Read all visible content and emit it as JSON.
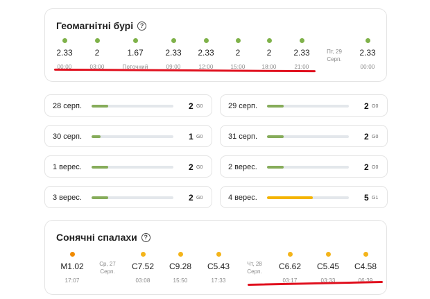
{
  "storms": {
    "title": "Геомагнітні бурі",
    "help_icon": "question-circle-icon",
    "points": [
      {
        "value": "2.33",
        "time": "00:00"
      },
      {
        "value": "2",
        "time": "03:00"
      },
      {
        "value": "1.67",
        "time": "Поточний"
      },
      {
        "value": "2.33",
        "time": "09:00"
      },
      {
        "value": "2.33",
        "time": "12:00"
      },
      {
        "value": "2",
        "time": "15:00"
      },
      {
        "value": "2",
        "time": "18:00"
      },
      {
        "value": "2.33",
        "time": "21:00"
      },
      {
        "value": "2.33",
        "time": "00:00"
      }
    ],
    "date_marker": {
      "line1": "Пт, 29",
      "line2": "Серп."
    },
    "dot_color": "#7fb24a"
  },
  "forecast": [
    {
      "date": "28 серп.",
      "kp": "2",
      "g": "G0",
      "level": 0.2
    },
    {
      "date": "29 серп.",
      "kp": "2",
      "g": "G0",
      "level": 0.2
    },
    {
      "date": "30 серп.",
      "kp": "1",
      "g": "G0",
      "level": 0.1
    },
    {
      "date": "31 серп.",
      "kp": "2",
      "g": "G0",
      "level": 0.2
    },
    {
      "date": "1 верес.",
      "kp": "2",
      "g": "G0",
      "level": 0.2
    },
    {
      "date": "2 верес.",
      "kp": "2",
      "g": "G0",
      "level": 0.2
    },
    {
      "date": "3 верес.",
      "kp": "2",
      "g": "G0",
      "level": 0.2
    },
    {
      "date": "4 верес.",
      "kp": "5",
      "g": "G1",
      "level": 0.5
    }
  ],
  "flares": {
    "title": "Сонячні спалахи",
    "help_icon": "question-circle-icon",
    "points": [
      {
        "value": "M1.02",
        "time": "17:07"
      },
      {
        "value": "C7.52",
        "time": "03:08"
      },
      {
        "value": "C9.28",
        "time": "15:50"
      },
      {
        "value": "C5.43",
        "time": "17:33"
      },
      {
        "value": "C6.62",
        "time": "03:17"
      },
      {
        "value": "C5.45",
        "time": "03:33"
      },
      {
        "value": "C4.58",
        "time": "06:39"
      }
    ],
    "date_markers": [
      {
        "line1": "Ср, 27",
        "line2": "Серп."
      },
      {
        "line1": "Чт, 28",
        "line2": "Серп."
      }
    ],
    "colors": {
      "m_class": "#f08a00",
      "c_class": "#f4b41a"
    }
  },
  "colors": {
    "normal": "#86ac5a",
    "storm": "#f4b400",
    "highlight": "#e0101e"
  }
}
